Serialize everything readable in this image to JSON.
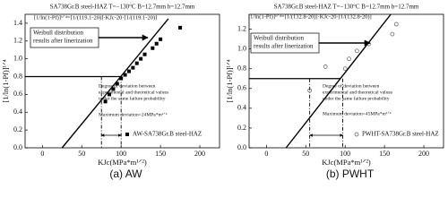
{
  "chart_data": [
    {
      "type": "scatter",
      "title": "SA738Gr.B steel-HAZ  T=−130°C  B=12.7mm  b=12.7mm",
      "equation": "[1/ln(1-Pf)]¹ᐟ⁴=[1/(119.1-20)]·KJc-20·[1/(119.1-20)]",
      "note": [
        "Weibull distribution",
        "results after linerization"
      ],
      "deviation_note": [
        "Degree of deviation between",
        "experimental and theoretical values",
        "under the same failure probability"
      ],
      "max_deviation": "Maximum deviation=24MPa*m¹ᐟ²",
      "x_label": "KJc(MPa*m¹ᐟ²)",
      "y_label": "[1/ln(1-Pf)]¹ᐟ⁴",
      "caption": "(a) AW",
      "xlim": [
        -22,
        225
      ],
      "ylim": [
        0,
        1.5
      ],
      "xticks": [
        0,
        50,
        100,
        150,
        200
      ],
      "yticks": [
        {
          "value": 0,
          "label": "0.0"
        },
        0.2,
        0.4,
        0.6,
        0.8,
        {
          "value": 1,
          "label": "1.0"
        },
        1.2,
        1.4
      ],
      "series": [
        {
          "name": "AW-SA738Gr.B steel-HAZ",
          "color": "#000000",
          "marker": "square",
          "x": [
            80,
            85,
            90,
            95,
            100,
            105,
            110,
            115,
            120,
            125,
            130,
            140,
            145,
            150,
            175
          ],
          "values": [
            0.52,
            0.6,
            0.66,
            0.72,
            0.78,
            0.82,
            0.86,
            0.9,
            0.95,
            1.0,
            1.05,
            1.12,
            1.17,
            1.22,
            1.35
          ]
        }
      ],
      "fit_line": {
        "x": [
          25,
          160
        ],
        "values": [
          0,
          1.45
        ]
      },
      "hline": 0.8,
      "vlines": [
        75,
        100
      ]
    },
    {
      "type": "scatter",
      "title": "SA738Gr.B steel-HAZ  T=−130°C  B=12.7mm  b=12.7mm",
      "equation": "[1/ln(1-Pf)]¹ᐟ⁴=[1/(132.8-20)]·KJc-20·[1/(132.8-20)]",
      "note": [
        "Weibull distribution",
        "results after linerization"
      ],
      "deviation_note": [
        "Degree of deviation between",
        "experimental and theoretical values",
        "under the same failure probability"
      ],
      "max_deviation": "Maximum deviation=45MPa*m¹ᐟ²",
      "x_label": "KJc(MPa*m¹ᐟ²)",
      "y_label": "[1/ln(1-Pf)]¹ᐟ⁴",
      "caption": "(b) PWHT",
      "xlim": [
        -22,
        225
      ],
      "ylim": [
        0,
        1.35
      ],
      "xticks": [
        0,
        50,
        100,
        150,
        200
      ],
      "yticks": [
        {
          "value": 0,
          "label": "0.0"
        },
        0.2,
        0.4,
        0.6,
        0.8,
        {
          "value": 1,
          "label": "1.0"
        },
        1.2
      ],
      "series": [
        {
          "name": "PWHT-SA738Gr.B steel-HAZ",
          "color": "#555555",
          "marker": "circle-open",
          "x": [
            55,
            75,
            100,
            105,
            115,
            130,
            160,
            165
          ],
          "values": [
            0.58,
            0.82,
            0.8,
            0.9,
            0.98,
            1.05,
            1.15,
            1.25
          ]
        }
      ],
      "fit_line": {
        "x": [
          25,
          158
        ],
        "values": [
          0,
          1.35
        ]
      },
      "hline": 0.7,
      "vlines": [
        55,
        97
      ]
    }
  ]
}
